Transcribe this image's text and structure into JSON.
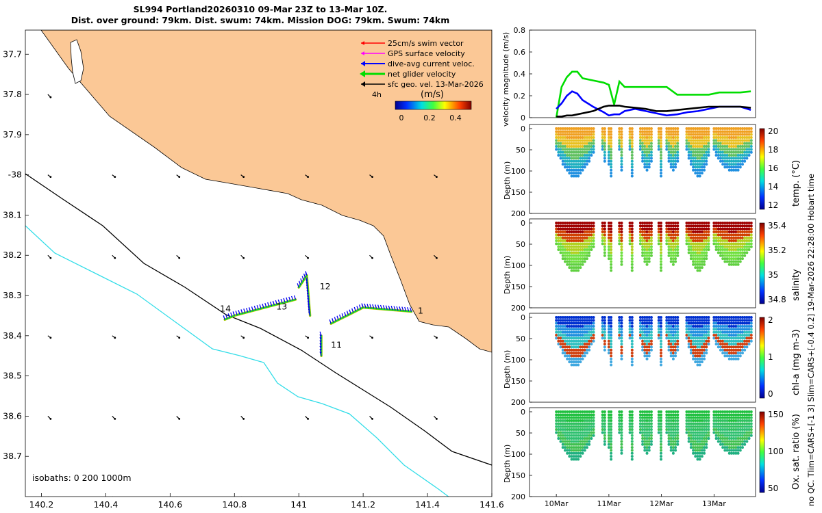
{
  "title": {
    "line1": "SL994 Portland20260310 09-Mar 23Z to 13-Mar 10Z.",
    "line2": "Dist. over ground: 79km. Dist. swum: 74km. Mission DOG: 79km. Swum: 74km"
  },
  "side_caption": "no QC. Tlim=CARS+[-1 3] Slim=CARS+[-0.4 0.2] 19-Mar-2026 22:28:00 Hobart time",
  "colors": {
    "land": "#fbc896",
    "swim": "#ff0000",
    "gps": "#ff00ff",
    "dive": "#0000ff",
    "net": "#00dd00",
    "geo": "#000000",
    "isobath200": "#000000",
    "isobath1000": "#33dde8"
  },
  "chart_data": [
    {
      "type": "map",
      "xticks": [
        140.2,
        140.4,
        140.6,
        140.8,
        141,
        141.2,
        141.4,
        141.6
      ],
      "xtick_labels": [
        "140.2",
        "140.4",
        "140.6",
        "140.8",
        "141",
        "141.2",
        "141.4",
        "141.6"
      ],
      "xlim": [
        140.15,
        141.6
      ],
      "ylim": [
        -38.8,
        -37.64
      ],
      "yticks": [
        -37.7,
        -37.8,
        -37.9,
        -38,
        -38.1,
        -38.2,
        -38.3,
        -38.4,
        -38.5,
        -38.6,
        -38.7
      ],
      "ytick_labels": [
        "37.7",
        "37.8",
        "37.9",
        "-38",
        "38.1",
        "38.2",
        "38.3",
        "38.4",
        "38.5",
        "38.6",
        "38.7"
      ],
      "legend": {
        "items": [
          "25cm/s swim vector",
          "GPS surface velocity",
          "dive-avg current veloc.",
          "net glider velocity",
          "sfc geo. vel. 13-Mar-2026"
        ],
        "interval": "4h",
        "colorbar_label": "(m/s)",
        "colorbar_ticks": [
          "0",
          "0.2",
          "0.4"
        ]
      },
      "isobath_note": "isobaths: 0   200   1000m",
      "day_labels": [
        {
          "text": "11",
          "lon": 141.1,
          "lat": -38.43
        },
        {
          "text": "12",
          "lon": 141.065,
          "lat": -38.285
        },
        {
          "text": "13",
          "lon": 140.93,
          "lat": -38.335
        },
        {
          "text": "14",
          "lon": 140.755,
          "lat": -38.34
        },
        {
          "text": "1",
          "lon": 141.37,
          "lat": -38.345
        }
      ],
      "track_segments": [
        {
          "name": "leg-to-west",
          "from": [
            141.35,
            -38.34
          ],
          "to": [
            141.2,
            -38.33
          ]
        },
        {
          "name": "leg-south",
          "from": [
            141.2,
            -38.33
          ],
          "to": [
            141.1,
            -38.37
          ]
        },
        {
          "name": "leg-11",
          "from": [
            141.07,
            -38.4
          ],
          "to": [
            141.07,
            -38.45
          ]
        },
        {
          "name": "leg-12",
          "from": [
            141.035,
            -38.35
          ],
          "to": [
            141.025,
            -38.25
          ]
        },
        {
          "name": "leg-12b",
          "from": [
            141.025,
            -38.25
          ],
          "to": [
            141.0,
            -38.28
          ]
        },
        {
          "name": "leg-13",
          "from": [
            140.99,
            -38.31
          ],
          "to": [
            140.8,
            -38.35
          ]
        },
        {
          "name": "leg-14",
          "from": [
            140.8,
            -38.35
          ],
          "to": [
            140.77,
            -38.36
          ]
        }
      ]
    },
    {
      "type": "line",
      "ylabel": "velocity magnitude (m/s)",
      "ylim": [
        0,
        0.8
      ],
      "yticks": [
        "0",
        "0.2",
        "0.4",
        "0.6",
        "0.8"
      ],
      "x": [
        0,
        0.1,
        0.2,
        0.3,
        0.4,
        0.5,
        0.7,
        0.9,
        1.0,
        1.1,
        1.2,
        1.3,
        1.5,
        1.7,
        1.9,
        2.1,
        2.3,
        2.5,
        2.7,
        2.9,
        3.1,
        3.3,
        3.5,
        3.7
      ],
      "series": [
        {
          "name": "net",
          "color": "#00dd00",
          "values": [
            0.0,
            0.28,
            0.37,
            0.42,
            0.42,
            0.36,
            0.34,
            0.32,
            0.3,
            0.12,
            0.33,
            0.28,
            0.28,
            0.28,
            0.28,
            0.28,
            0.21,
            0.21,
            0.21,
            0.21,
            0.23,
            0.23,
            0.23,
            0.24
          ]
        },
        {
          "name": "dive",
          "color": "#0000ff",
          "values": [
            0.08,
            0.13,
            0.2,
            0.24,
            0.22,
            0.16,
            0.1,
            0.05,
            0.02,
            0.03,
            0.03,
            0.06,
            0.08,
            0.06,
            0.04,
            0.02,
            0.03,
            0.05,
            0.06,
            0.08,
            0.1,
            0.1,
            0.1,
            0.07
          ]
        },
        {
          "name": "geo",
          "color": "#000000",
          "values": [
            0.01,
            0.01,
            0.02,
            0.02,
            0.03,
            0.04,
            0.06,
            0.1,
            0.11,
            0.11,
            0.11,
            0.1,
            0.09,
            0.08,
            0.06,
            0.06,
            0.07,
            0.08,
            0.09,
            0.1,
            0.1,
            0.1,
            0.1,
            0.09
          ]
        }
      ]
    },
    {
      "type": "scatter",
      "ylabel": "Depth (m)",
      "cbar_label": "temp. (°C)",
      "cbar_ticks": [
        "20",
        "18",
        "16",
        "14",
        "12"
      ],
      "yticks": [
        "0",
        "50",
        "100",
        "150",
        "200"
      ]
    },
    {
      "type": "scatter",
      "ylabel": "Depth (m)",
      "cbar_label": "salinity",
      "cbar_ticks": [
        "35.4",
        "35.2",
        "35",
        "34.8"
      ],
      "yticks": [
        "0",
        "50",
        "100",
        "150",
        "200"
      ]
    },
    {
      "type": "scatter",
      "ylabel": "Depth (m)",
      "cbar_label": "chl-a (mg m-3)",
      "cbar_ticks": [
        "2",
        "1",
        "0"
      ],
      "yticks": [
        "0",
        "50",
        "100",
        "150",
        "200"
      ]
    },
    {
      "type": "scatter",
      "ylabel": "Depth (m)",
      "cbar_label": "Ox. sat. ratio (%)",
      "cbar_ticks": [
        "150",
        "100",
        "50"
      ],
      "yticks": [
        "0",
        "50",
        "100",
        "150",
        "200"
      ],
      "xtick_labels": [
        "10Mar",
        "11Mar",
        "12Mar",
        "13Mar"
      ]
    }
  ]
}
